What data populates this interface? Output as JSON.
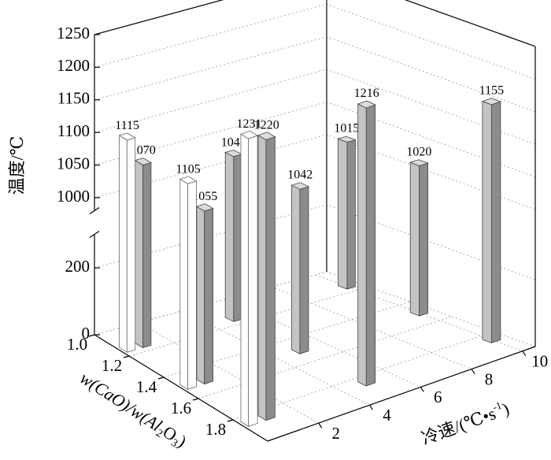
{
  "chart_data": {
    "type": "bar3d",
    "ylabel": "温度/℃",
    "xlabel_parts": [
      "w(CaO)/w(Al",
      "2",
      "O",
      "3",
      ")"
    ],
    "zlabel_parts": [
      "冷速/(℃•s",
      "-1",
      ")"
    ],
    "xlim": [
      1.0,
      2.0
    ],
    "xticks": [
      {
        "value": 1.0,
        "label": "1.0"
      },
      1.2,
      1.4,
      1.6,
      1.8
    ],
    "zlim": [
      0,
      10.5
    ],
    "zticks": [
      2,
      4,
      6,
      8,
      10
    ],
    "ylim": [
      0,
      1250
    ],
    "ybreak": [
      300,
      980
    ],
    "yticks": [
      0,
      200,
      1000,
      1050,
      1100,
      1150,
      1200,
      1250
    ],
    "grid": true,
    "series": [
      {
        "style": "hollow",
        "color": "#ffffff",
        "x": [
          1.15,
          1.5,
          1.85
        ],
        "z": [
          0.3,
          0.3,
          0.3
        ],
        "values": [
          1115,
          1105,
          1231
        ]
      },
      {
        "style": "solid",
        "color": "#8c8c8c",
        "x": [
          1.15,
          1.5,
          1.85,
          1.15,
          1.5,
          1.85,
          1.15,
          1.5,
          1.85
        ],
        "z": [
          1,
          1,
          1,
          5,
          5,
          5,
          10,
          10,
          10
        ],
        "values": [
          1070,
          1055,
          1220,
          1043,
          1042,
          1216,
          1015,
          1020,
          1155
        ]
      }
    ]
  }
}
